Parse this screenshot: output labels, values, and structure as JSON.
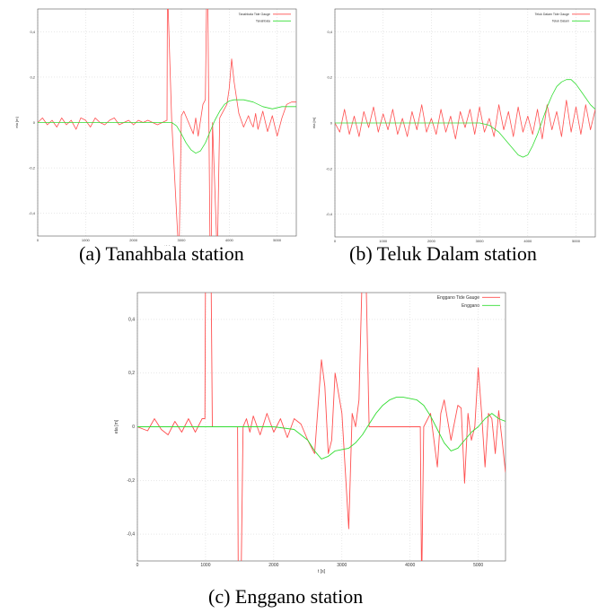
{
  "figure": {
    "captions": [
      "(a) Tanahbala station",
      "(b) Teluk Dalam station",
      "(c) Enggano station"
    ]
  },
  "chart_data": [
    {
      "type": "line",
      "xlabel": "t [s]",
      "ylabel": "eta [m]",
      "xlim": [
        0,
        5400
      ],
      "ylim": [
        -0.5,
        0.5
      ],
      "xticks": [
        "0",
        "1000",
        "2000",
        "3000",
        "4000",
        "5000"
      ],
      "yticks": [
        "-0,4",
        "-0,2",
        "0",
        "0,2",
        "0,4"
      ],
      "grid": true,
      "legend_position": "top-right",
      "series": [
        {
          "name": "Tanahbala Tide Gauge",
          "color": "#ff4f4f",
          "x": [
            0,
            100,
            200,
            300,
            400,
            500,
            600,
            700,
            800,
            900,
            1000,
            1100,
            1200,
            1300,
            1400,
            1500,
            1600,
            1700,
            1800,
            1900,
            2000,
            2100,
            2200,
            2300,
            2400,
            2500,
            2600,
            2700,
            2710,
            2800,
            2950,
            3000,
            3050,
            3150,
            3250,
            3300,
            3350,
            3450,
            3500,
            3530,
            3550,
            3600,
            3620,
            3650,
            3750,
            3800,
            3850,
            3900,
            3950,
            4000,
            4050,
            4100,
            4200,
            4300,
            4400,
            4450,
            4500,
            4550,
            4600,
            4700,
            4800,
            4900,
            5000,
            5100,
            5200,
            5300,
            5400
          ],
          "y": [
            0.0,
            0.02,
            -0.01,
            0.01,
            -0.02,
            0.02,
            -0.01,
            0.01,
            -0.03,
            0.02,
            0.01,
            -0.02,
            0.02,
            0.0,
            -0.01,
            0.01,
            0.02,
            -0.01,
            0.0,
            0.01,
            -0.01,
            0.01,
            0.0,
            0.01,
            0.0,
            -0.01,
            0.0,
            0.01,
            0.6,
            0.0,
            -0.6,
            0.03,
            0.05,
            0.0,
            -0.05,
            0.02,
            -0.06,
            0.08,
            0.1,
            0.6,
            0.6,
            -0.6,
            -0.6,
            0.0,
            -0.6,
            0.02,
            0.04,
            0.06,
            0.08,
            0.15,
            0.28,
            0.18,
            0.04,
            -0.02,
            0.03,
            0.0,
            -0.02,
            0.04,
            -0.03,
            0.05,
            -0.04,
            0.03,
            -0.06,
            0.02,
            0.08,
            0.09,
            0.09
          ]
        },
        {
          "name": "Tanahbala",
          "color": "#33dd33",
          "x": [
            0,
            500,
            1000,
            1500,
            2000,
            2500,
            2800,
            2900,
            3000,
            3100,
            3200,
            3300,
            3400,
            3500,
            3600,
            3700,
            3800,
            3900,
            4000,
            4100,
            4200,
            4300,
            4500,
            4700,
            4900,
            5100,
            5300,
            5400
          ],
          "y": [
            0,
            0,
            0,
            0,
            0,
            0,
            0,
            -0.015,
            -0.05,
            -0.09,
            -0.12,
            -0.135,
            -0.125,
            -0.09,
            -0.04,
            0.01,
            0.05,
            0.08,
            0.095,
            0.1,
            0.1,
            0.1,
            0.09,
            0.07,
            0.06,
            0.07,
            0.07,
            0.07
          ]
        }
      ]
    },
    {
      "type": "line",
      "xlabel": "t [s]",
      "ylabel": "eta [m]",
      "xlim": [
        0,
        5400
      ],
      "ylim": [
        -0.5,
        0.5
      ],
      "xticks": [
        "0",
        "1000",
        "2000",
        "3000",
        "4000",
        "5000"
      ],
      "yticks": [
        "-0,4",
        "-0,2",
        "0",
        "0,2",
        "0,4"
      ],
      "grid": true,
      "legend_position": "top-right",
      "series": [
        {
          "name": "Teluk Dalam Tide Gauge",
          "color": "#ff4f4f",
          "x": [
            0,
            100,
            200,
            300,
            400,
            500,
            600,
            700,
            800,
            900,
            1000,
            1100,
            1200,
            1300,
            1400,
            1500,
            1600,
            1700,
            1800,
            1900,
            2000,
            2100,
            2200,
            2300,
            2400,
            2500,
            2600,
            2700,
            2800,
            2900,
            3000,
            3100,
            3200,
            3300,
            3400,
            3500,
            3600,
            3700,
            3800,
            3900,
            4000,
            4100,
            4200,
            4300,
            4400,
            4500,
            4600,
            4700,
            4800,
            4900,
            5000,
            5100,
            5200,
            5300,
            5400
          ],
          "y": [
            0.0,
            -0.04,
            0.06,
            -0.05,
            0.03,
            -0.06,
            0.05,
            -0.02,
            0.07,
            -0.04,
            0.04,
            -0.03,
            0.06,
            -0.05,
            0.02,
            -0.06,
            0.05,
            -0.03,
            0.08,
            -0.04,
            0.02,
            -0.05,
            0.06,
            -0.04,
            0.03,
            -0.07,
            0.05,
            -0.02,
            0.06,
            -0.05,
            0.07,
            -0.04,
            0.02,
            -0.06,
            0.08,
            -0.03,
            0.05,
            -0.06,
            0.07,
            -0.04,
            0.03,
            -0.05,
            0.06,
            -0.07,
            0.08,
            -0.03,
            0.05,
            -0.06,
            0.1,
            -0.04,
            0.07,
            -0.05,
            0.08,
            -0.03,
            0.06
          ]
        },
        {
          "name": "Teluk Dalam",
          "color": "#33dd33",
          "x": [
            0,
            500,
            1000,
            1500,
            2000,
            2500,
            3000,
            3200,
            3400,
            3600,
            3800,
            3900,
            4000,
            4100,
            4200,
            4300,
            4400,
            4500,
            4600,
            4700,
            4800,
            4900,
            5000,
            5100,
            5200,
            5300,
            5400
          ],
          "y": [
            0,
            0,
            0,
            0,
            0,
            0,
            0,
            -0.01,
            -0.04,
            -0.09,
            -0.14,
            -0.15,
            -0.14,
            -0.1,
            -0.05,
            0.01,
            0.07,
            0.12,
            0.16,
            0.18,
            0.19,
            0.19,
            0.17,
            0.14,
            0.11,
            0.08,
            0.06
          ]
        }
      ]
    },
    {
      "type": "line",
      "xlabel": "t [s]",
      "ylabel": "eta [m]",
      "xlim": [
        0,
        5400
      ],
      "ylim": [
        -0.5,
        0.5
      ],
      "xticks": [
        "0",
        "1000",
        "2000",
        "3000",
        "4000",
        "5000"
      ],
      "yticks": [
        "-0,4",
        "-0,2",
        "0",
        "0,2",
        "0,4"
      ],
      "grid": true,
      "legend_position": "top-right",
      "series": [
        {
          "name": "Enggano Tide Gauge",
          "color": "#ff4f4f",
          "x": [
            0,
            100,
            150,
            250,
            350,
            450,
            550,
            650,
            750,
            850,
            950,
            990,
            1000,
            1050,
            1080,
            1100,
            1250,
            1400,
            1470,
            1480,
            1520,
            1550,
            1600,
            1650,
            1700,
            1800,
            1900,
            2000,
            2100,
            2200,
            2300,
            2400,
            2500,
            2600,
            2700,
            2750,
            2800,
            2850,
            2900,
            3000,
            3100,
            3150,
            3200,
            3250,
            3300,
            3350,
            3400,
            3500,
            3600,
            3700,
            3800,
            3900,
            4000,
            4100,
            4150,
            4170,
            4200,
            4300,
            4400,
            4450,
            4500,
            4600,
            4700,
            4750,
            4800,
            4850,
            4900,
            4950,
            5000,
            5050,
            5100,
            5150,
            5200,
            5250,
            5300,
            5350,
            5400
          ],
          "y": [
            0,
            -0.01,
            -0.015,
            0.03,
            -0.01,
            -0.03,
            0.02,
            -0.02,
            0.03,
            -0.02,
            0.03,
            0.03,
            0.6,
            0.6,
            0.6,
            0.0,
            0.0,
            0.0,
            0.0,
            -0.6,
            -0.6,
            0.0,
            0.03,
            -0.02,
            0.04,
            -0.03,
            0.05,
            -0.02,
            0.03,
            -0.04,
            0.03,
            0.01,
            -0.05,
            -0.1,
            0.25,
            0.15,
            -0.1,
            -0.05,
            0.2,
            0.05,
            -0.38,
            0.05,
            0.0,
            0.1,
            0.6,
            0.6,
            0.0,
            0.0,
            0.0,
            0.0,
            0.0,
            0.0,
            0.0,
            0.0,
            0.0,
            -0.6,
            0.0,
            0.05,
            -0.15,
            0.05,
            0.1,
            -0.05,
            0.08,
            0.07,
            -0.21,
            0.05,
            -0.05,
            0.0,
            0.22,
            0.05,
            -0.15,
            0.05,
            0.03,
            -0.1,
            0.06,
            -0.05,
            -0.17
          ]
        },
        {
          "name": "Enggano",
          "color": "#33dd33",
          "x": [
            0,
            500,
            1000,
            1500,
            2000,
            2300,
            2500,
            2600,
            2700,
            2800,
            2900,
            3000,
            3100,
            3200,
            3300,
            3400,
            3500,
            3600,
            3700,
            3800,
            3900,
            4000,
            4100,
            4200,
            4300,
            4400,
            4500,
            4600,
            4700,
            4800,
            4900,
            5000,
            5100,
            5200,
            5300,
            5400
          ],
          "y": [
            0,
            0,
            0,
            0,
            0,
            -0.01,
            -0.05,
            -0.09,
            -0.12,
            -0.11,
            -0.09,
            -0.085,
            -0.08,
            -0.06,
            -0.03,
            0.01,
            0.05,
            0.08,
            0.1,
            0.11,
            0.11,
            0.105,
            0.1,
            0.08,
            0.04,
            -0.01,
            -0.06,
            -0.09,
            -0.08,
            -0.05,
            -0.02,
            0.0,
            0.03,
            0.05,
            0.03,
            0.02
          ]
        }
      ]
    }
  ]
}
